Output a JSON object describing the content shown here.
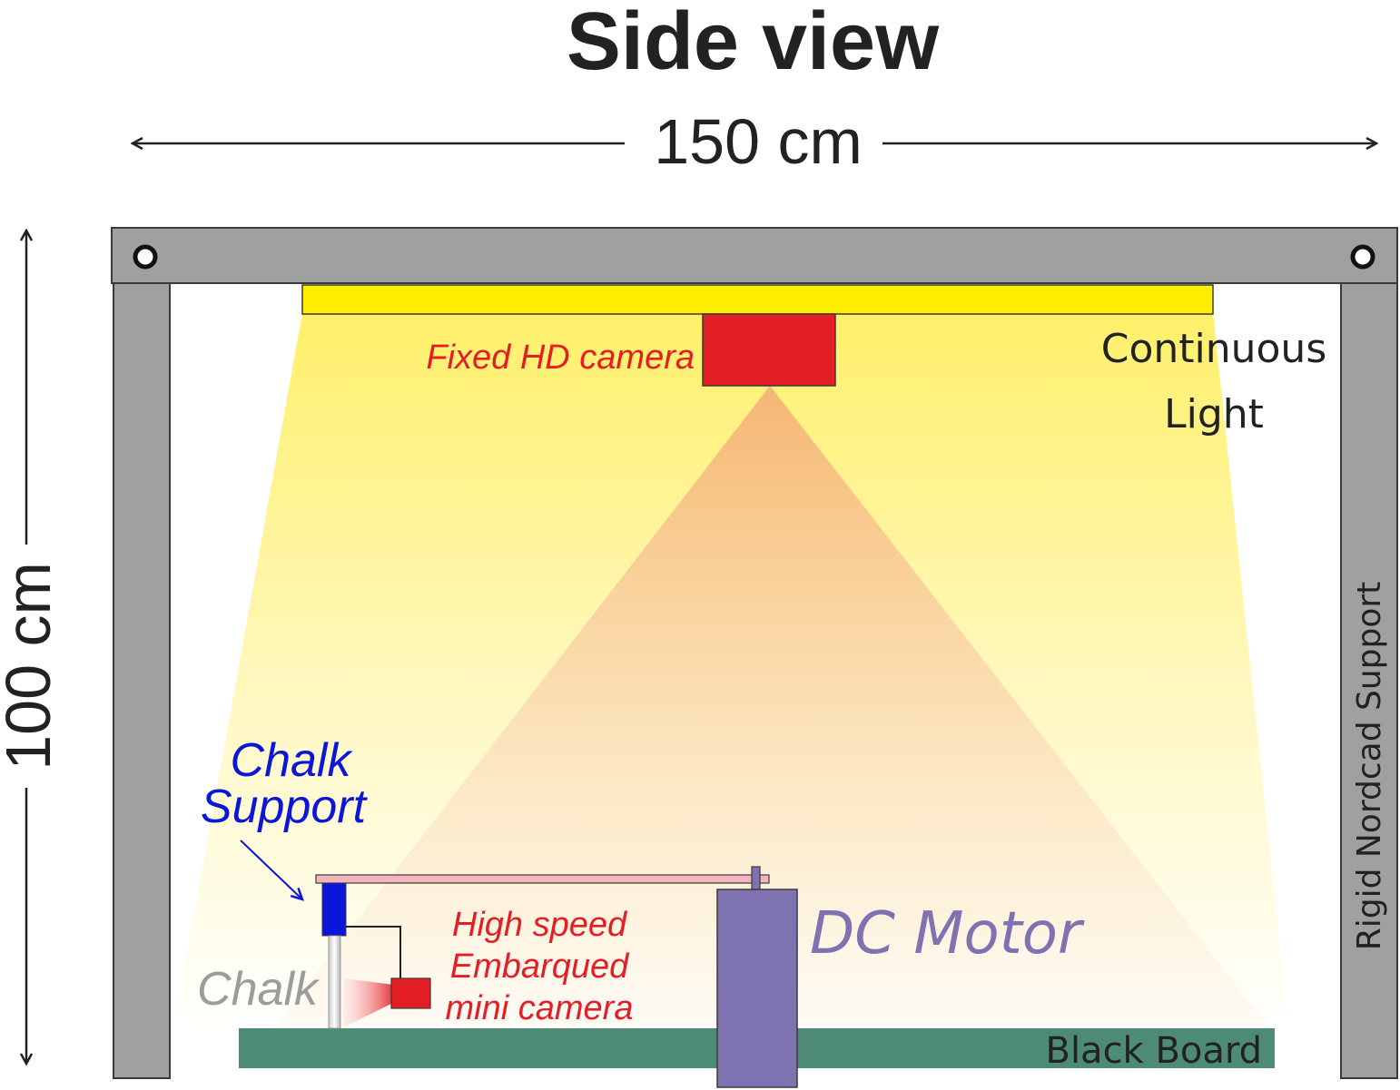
{
  "title": "Side view",
  "dimensions": {
    "width_label": "150 cm",
    "height_label": "100 cm"
  },
  "labels": {
    "fixed_camera": "Fixed HD camera",
    "continuous_light_line1": "Continuous",
    "continuous_light_line2": "Light",
    "chalk_support_line1": "Chalk",
    "chalk_support_line2": "Support",
    "chalk": "Chalk",
    "high_speed_line1": "High speed",
    "high_speed_line2": "Embarqued",
    "high_speed_line3": "mini camera",
    "dc_motor": "DC Motor",
    "black_board": "Black Board",
    "rigid_support": "Rigid Nordcad Support"
  },
  "colors": {
    "frame": "#a0a0a0",
    "frame_stroke": "#3a3a3a",
    "light_bar": "#ffee00",
    "camera": "#e31e25",
    "camera_cone": "#f5b673",
    "chalk_support": "#0b16d8",
    "motor": "#7f72b1",
    "arm": "#f3b4bc",
    "board": "#4e8a78",
    "label_red": "#e31e25",
    "label_blue": "#0b16d8",
    "label_purple": "#7f72b1",
    "label_gray": "#9c9c9c",
    "text_dark": "#222222"
  }
}
